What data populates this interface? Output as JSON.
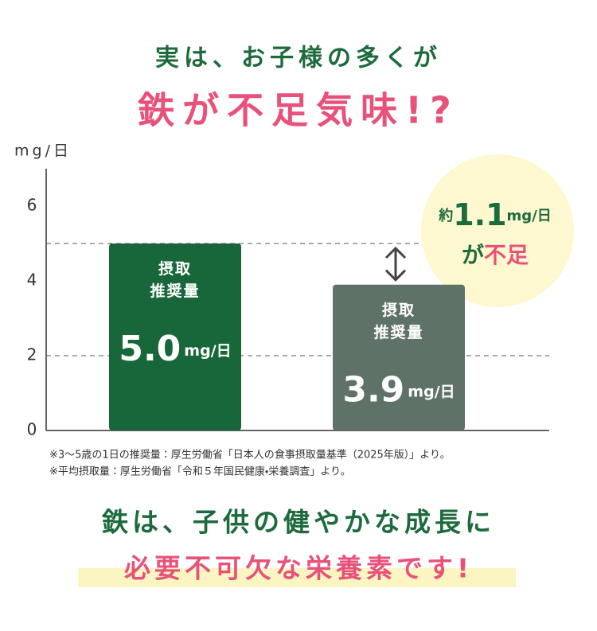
{
  "chart_data": {
    "type": "bar",
    "title": "実は、お子様の多くが",
    "subtitle": "鉄が不足気味!?",
    "y_label": "mg/日",
    "categories": [
      "摂取\n推奨量",
      "摂取\n推奨量"
    ],
    "values": [
      5.0,
      3.9
    ],
    "value_labels": [
      "5.0",
      "3.9"
    ],
    "colors": [
      "#17673a",
      "#5f7268"
    ],
    "ylim": [
      0,
      7
    ],
    "yticks": [
      0,
      2,
      4,
      6
    ],
    "annotation": {
      "prefix": "約",
      "value": 1.1,
      "unit": "mg/日",
      "suffix": [
        "が",
        "不足"
      ]
    }
  },
  "notes": [
    "※3〜5歳の1日の推奨量：厚生労働省「日本人の食事摂取量基準（2025年版）」より。",
    "※平均摂取量：厚生労働省「令和５年国民健康・栄養調査」より。"
  ],
  "message": [
    "鉄は、子供の健やかな成長に",
    "必要不可欠な栄養素です!"
  ]
}
